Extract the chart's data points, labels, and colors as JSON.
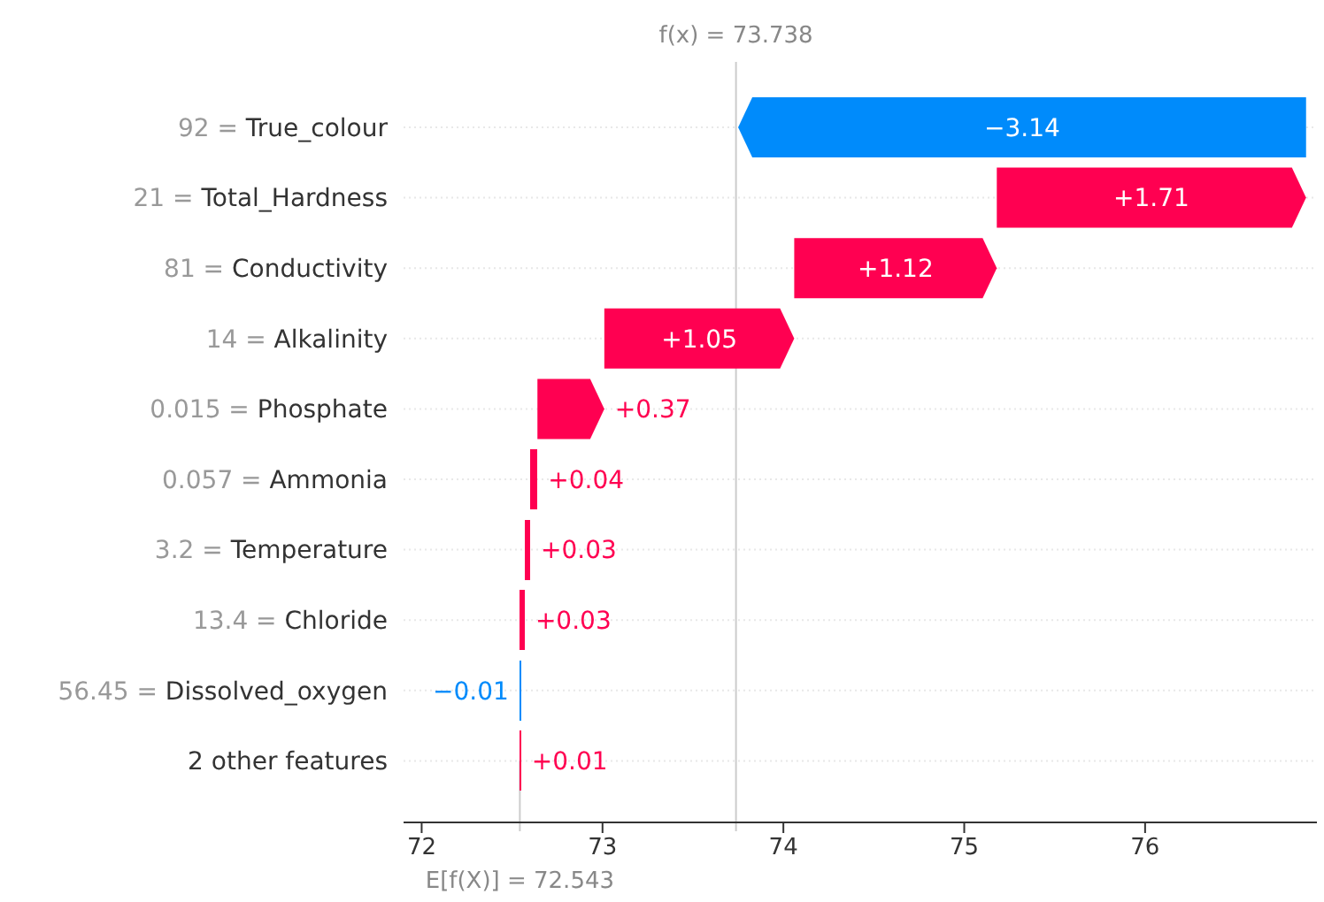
{
  "chart_data": {
    "type": "bar",
    "orientation": "horizontal",
    "categories": [
      "92 = True_colour",
      "21 = Total_Hardness",
      "81 = Conductivity",
      "14 = Alkalinity",
      "0.015 = Phosphate",
      "0.057 = Ammonia",
      "3.2 = Temperature",
      "13.4 = Chloride",
      "56.45 = Dissolved_oxygen",
      "2 other features"
    ],
    "values": [
      -3.14,
      1.71,
      1.12,
      1.05,
      0.37,
      0.04,
      0.03,
      0.03,
      -0.01,
      0.01
    ],
    "base": [
      76.89,
      75.18,
      74.06,
      73.01,
      72.64,
      72.6,
      72.57,
      72.54,
      72.55,
      72.54
    ],
    "colors": [
      "#008bfb",
      "#ff0051",
      "#ff0051",
      "#ff0051",
      "#ff0051",
      "#ff0051",
      "#ff0051",
      "#ff0051",
      "#008bfb",
      "#ff0051"
    ],
    "value_labels": [
      "−3.14",
      "+1.71",
      "+1.12",
      "+1.05",
      "+0.37",
      "+0.04",
      "+0.03",
      "+0.03",
      "−0.01",
      "+0.01"
    ],
    "xlim": [
      71.9,
      76.95
    ],
    "xticks": [
      72,
      73,
      74,
      75,
      76
    ],
    "grid": "y",
    "ref_lines": [
      {
        "axis": "x",
        "value": 73.738,
        "label": "f(x) = 73.738",
        "color": "#cccccc"
      },
      {
        "axis": "x",
        "value": 72.543,
        "label": "E[f(X)] = 72.543",
        "color": "#cccccc"
      }
    ]
  }
}
